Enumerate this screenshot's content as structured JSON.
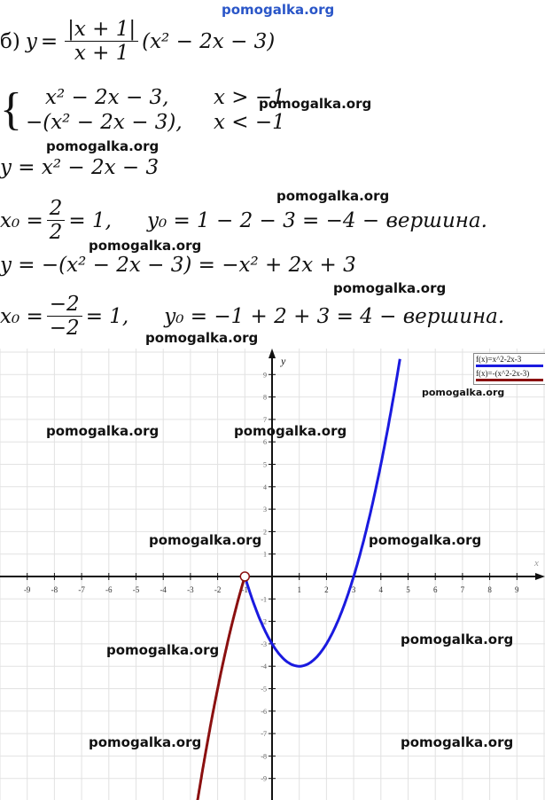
{
  "watermark": "pomogalka.org",
  "lines": {
    "l1": {
      "label": "б)",
      "y": "y",
      "eq": "=",
      "num": "|x + 1|",
      "den": "x + 1",
      "rest": "(x² − 2x − 3)"
    },
    "system": {
      "r1a": "x² − 2x − 3,",
      "r1b": "x > −1",
      "r2a": "−(x² − 2x − 3),",
      "r2b": "x < −1"
    },
    "l3": "y = x² − 2x − 3",
    "l4": {
      "x0": "x₀ =",
      "num": "2",
      "den": "2",
      "rest1": "= 1,",
      "rest2": "y₀ = 1 − 2 − 3 = −4 − вершина."
    },
    "l5": "y = −(x² − 2x − 3) = −x² + 2x + 3",
    "l6": {
      "x0": "x₀ =",
      "num": "−2",
      "den": "−2",
      "rest1": "= 1,",
      "rest2": "y₀ = −1 + 2 + 3 = 4 − вершина."
    }
  },
  "chart_data": {
    "type": "line",
    "xlabel": "x",
    "ylabel": "y",
    "xlim": [
      -10,
      10
    ],
    "ylim": [
      -10,
      10
    ],
    "xticks": [
      -9,
      -8,
      -7,
      -6,
      -5,
      -4,
      -3,
      -2,
      -1,
      1,
      2,
      3,
      4,
      5,
      6,
      7,
      8,
      9
    ],
    "yticks": [
      -9,
      -8,
      -7,
      -6,
      -5,
      -4,
      -3,
      -2,
      -1,
      1,
      2,
      3,
      4,
      5,
      6,
      7,
      8,
      9
    ],
    "grid": true,
    "legend_placement": "top-right",
    "series": [
      {
        "name": "f(x)=x^2-2x-3",
        "formula": "x^2-2x-3",
        "domain": [
          -1,
          4.7
        ],
        "color": "#1a1adf"
      },
      {
        "name": "f(x)=-(x^2-2x-3)",
        "formula": "-(x^2-2x-3)",
        "domain": [
          -2.75,
          -1
        ],
        "color": "#8b1010"
      }
    ],
    "open_point": {
      "x": -1,
      "y": 0
    }
  }
}
